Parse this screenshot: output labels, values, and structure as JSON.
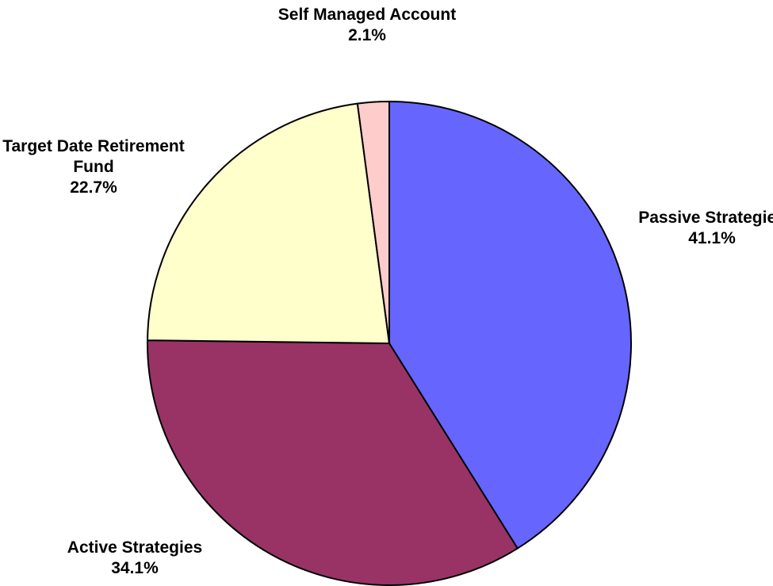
{
  "chart_data": {
    "type": "pie",
    "categories": [
      "Passive Strategies",
      "Active Strategies",
      "Target Date Retirement Fund",
      "Self Managed Account"
    ],
    "values": [
      41.1,
      34.1,
      22.7,
      2.1
    ],
    "value_labels": [
      "41.1%",
      "34.1%",
      "22.7%",
      "2.1%"
    ],
    "colors": [
      "#6666ff",
      "#993366",
      "#ffffcc",
      "#ffcccc"
    ]
  }
}
